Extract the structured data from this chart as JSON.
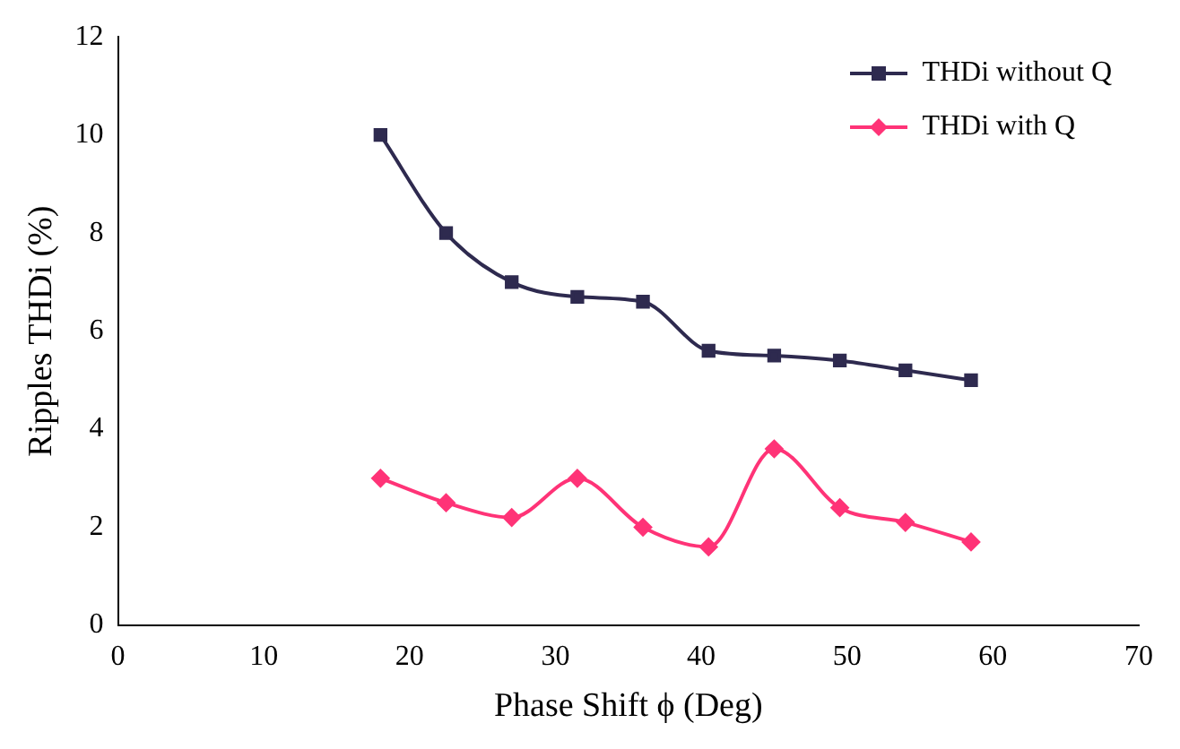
{
  "chart_data": {
    "type": "line",
    "xlabel": "Phase Shift ϕ (Deg)",
    "ylabel": "Ripples THDi (%)",
    "x": [
      18,
      22.5,
      27,
      31.5,
      36,
      40.5,
      45,
      49.5,
      54,
      58.5
    ],
    "series": [
      {
        "name": "THDi without Q",
        "color": "#2e2a4f",
        "marker": "square",
        "values": [
          10,
          8,
          7,
          6.7,
          6.6,
          5.6,
          5.5,
          5.4,
          5.2,
          5.0
        ]
      },
      {
        "name": "THDi with Q",
        "color": "#ff3377",
        "marker": "diamond",
        "values": [
          3.0,
          2.5,
          2.2,
          3.0,
          2.0,
          1.6,
          3.6,
          2.4,
          2.1,
          1.7
        ]
      }
    ],
    "xlim": [
      0,
      70
    ],
    "xticks": [
      0,
      10,
      20,
      30,
      40,
      50,
      60,
      70
    ],
    "ylim": [
      0,
      12
    ],
    "yticks": [
      0,
      2,
      4,
      6,
      8,
      10,
      12
    ],
    "grid": false,
    "legend": "top right",
    "line_style": "solid"
  }
}
